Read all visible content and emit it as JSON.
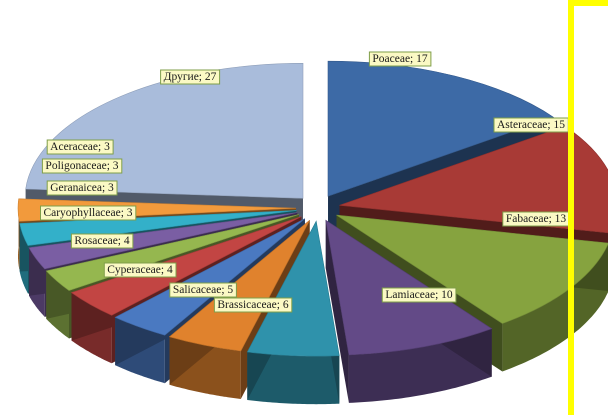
{
  "chart_data": {
    "type": "pie",
    "style": "3d-exploded",
    "title": "",
    "legend": "none",
    "slices": [
      {
        "name": "Poaceae",
        "value": 17,
        "label": "Poaceae; 17",
        "color": "#3d6aa6"
      },
      {
        "name": "Asteraceae",
        "value": 15,
        "label": "Asteraceae; 15",
        "color": "#a83a36"
      },
      {
        "name": "Fabaceae",
        "value": 13,
        "label": "Fabaceae; 13",
        "color": "#86a33f"
      },
      {
        "name": "Lamiaceae",
        "value": 10,
        "label": "Lamiaceae; 10",
        "color": "#634a87"
      },
      {
        "name": "Brassicaceae",
        "value": 6,
        "label": "Brassicaceae; 6",
        "color": "#2f92ab"
      },
      {
        "name": "Salicaceae",
        "value": 5,
        "label": "Salicaceae; 5",
        "color": "#e0822d"
      },
      {
        "name": "Cyperaceae",
        "value": 4,
        "label": "Cyperaceae; 4",
        "color": "#4a79c1"
      },
      {
        "name": "Rosaceae",
        "value": 4,
        "label": "Rosaceae; 4",
        "color": "#c24543"
      },
      {
        "name": "Caryophyllaceae",
        "value": 3,
        "label": "Caryophyllaceae; 3",
        "color": "#95b74f"
      },
      {
        "name": "Geranaicea",
        "value": 3,
        "label": "Geranaicea; 3",
        "color": "#7a5ea3"
      },
      {
        "name": "Poligonaceae",
        "value": 3,
        "label": "Poligonaceae; 3",
        "color": "#33b0c9"
      },
      {
        "name": "Aceraceae",
        "value": 3,
        "label": "Aceraceae; 3",
        "color": "#f29a3c"
      },
      {
        "name": "Другие",
        "value": 27,
        "label": "Другие; 27",
        "color": "#a9bcdb"
      }
    ]
  }
}
